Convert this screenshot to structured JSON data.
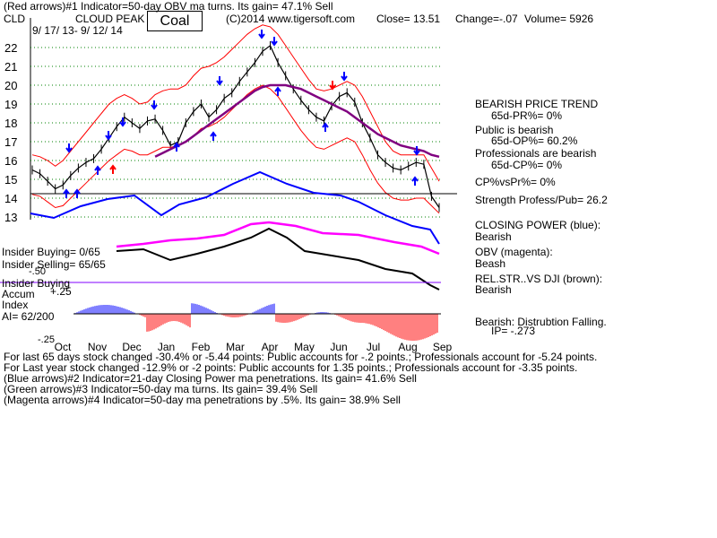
{
  "header": {
    "line1": "(Red arrows)#1 Indicator=50-day OBV ma turns. Its gain= 47.1% Sell",
    "ticker": "CLD",
    "company": "CLOUD PEAK",
    "industry": "Coal",
    "copyright": "(C)2014 www.tigersoft.com",
    "close": "Close=  13.51",
    "change": "Change=-.07",
    "volume": "Volume= 5926",
    "dates": "9/ 17/ 13-  9/ 12/ 14"
  },
  "right_panel": {
    "trend_title": "BEARISH PRICE TREND",
    "pr": "65d-PR%= 0%",
    "public": "Public is bearish",
    "op": "65d-OP%= 60.2%",
    "prof": "Professionals are bearish",
    "cp": "65d-CP%= 0%",
    "cpvspr": "CP%vsPr%=  0%",
    "strength": "Strength Profess/Pub= 26.2",
    "closing_power": "CLOSING POWER (blue):",
    "closing_power_v": "Bearish",
    "obv": "OBV (magenta):",
    "obv_v": "Beash",
    "relstr": "REL.STR..VS DJI (brown):",
    "relstr_v": "Bearish",
    "distribution": "Bearish: Distrubtion Falling.",
    "ip": "IP= -.273"
  },
  "left_labels": {
    "insider1": "Insider Buying= 0/65",
    "insider2": "Insider Selling= 65/65",
    "insider3": "Insider Buying",
    "accum": "Accum",
    "accum_val": "+.25",
    "index": "Index",
    "ai": "AI= 62/200",
    "minus50": "-.50",
    "minus25": "-.25"
  },
  "footer": {
    "l1": "For last 65 days stock changed -30.4% or -5.44 points:  Public accounts for -.2 points.;  Professionals account for -5.24 points.",
    "l2": "For Last year stock changed -12.9% or -2 points:  Public accounts for  1.35 points.;  Professionals account for -3.35 points.",
    "l3": "(Blue arrows)#2 Indicator=21-day Closing Power ma penetrations. Its gain= 41.6% Sell",
    "l4": "(Green arrows)#3 Indicator=50-day ma turns. Its gain= 39.4% Sell",
    "l5": "(Magenta arrows)#4 Indicator=50-day ma penetrations by .5%. Its gain= 38.9% Sell"
  },
  "colors": {
    "price": "#000000",
    "band": "#ff0000",
    "ma50": "#800080",
    "closing_power": "#0000ff",
    "obv": "#ff00ff",
    "relstr": "#000000",
    "accum_pos": "#0000ff",
    "accum_neg": "#ff0000",
    "grid": "#008000",
    "arrow_blue": "#0000ff",
    "arrow_red": "#ff0000"
  },
  "chart_data": {
    "type": "line",
    "y_ticks": [
      22,
      21,
      20,
      19,
      18,
      17,
      16,
      15,
      14,
      13
    ],
    "ylim": [
      13,
      22.5
    ],
    "x_ticks": [
      "Oct",
      "Nov",
      "Dec",
      "Jan",
      "Feb",
      "Mar",
      "Apr",
      "May",
      "Jun",
      "Jul",
      "Aug",
      "Sep"
    ],
    "grid": true,
    "series": [
      {
        "values": [
          15.5,
          15.3,
          14.9,
          14.5,
          14.7,
          15.2,
          15.6,
          15.9,
          16.1,
          16.6,
          17.2,
          17.8,
          18.3,
          18.0,
          17.7,
          18.1,
          18.2,
          17.6,
          16.8,
          17.0,
          18.0,
          18.6,
          19.0,
          18.3,
          18.7,
          19.3,
          19.6,
          20.2,
          20.7,
          21.2,
          21.8,
          22.1,
          21.2,
          20.5,
          19.8,
          19.2,
          18.7,
          18.3,
          18.1,
          18.9,
          19.4,
          19.6,
          19.1,
          18.0,
          17.2,
          16.3,
          15.9,
          15.6,
          15.5,
          15.7,
          15.9,
          15.8,
          14.1,
          13.5
        ]
      },
      {
        "values": [
          16.3,
          16.2,
          16.0,
          15.7,
          16.0,
          16.5,
          17.0,
          17.5,
          18.0,
          18.5,
          19.0,
          19.3,
          19.5,
          19.3,
          19.0,
          19.1,
          19.5,
          19.7,
          19.8,
          19.8,
          20.0,
          20.5,
          20.9,
          21.0,
          21.2,
          21.5,
          21.9,
          22.3,
          22.7,
          23.0,
          23.2,
          23.1,
          22.7,
          22.1,
          21.5,
          20.9,
          20.3,
          19.8,
          19.7,
          19.8,
          20.0,
          20.2,
          20.0,
          19.4,
          18.6,
          17.8,
          17.0,
          16.5,
          16.3,
          16.3,
          16.3,
          16.3,
          15.6,
          14.9
        ]
      },
      {
        "values": [
          14.2,
          14.1,
          13.8,
          13.5,
          13.6,
          14.0,
          14.4,
          14.8,
          15.2,
          15.6,
          16.0,
          16.3,
          16.6,
          16.5,
          16.3,
          16.3,
          16.5,
          16.7,
          16.7,
          16.8,
          17.0,
          17.3,
          17.7,
          17.8,
          18.0,
          18.3,
          18.7,
          19.1,
          19.5,
          19.8,
          20.0,
          19.8,
          19.4,
          18.8,
          18.2,
          17.6,
          17.1,
          16.7,
          16.6,
          16.8,
          17.0,
          17.2,
          17.0,
          16.3,
          15.5,
          14.8,
          14.3,
          14.0,
          13.9,
          13.9,
          14.0,
          14.0,
          13.6,
          13.2
        ]
      },
      {
        "values": [
          null,
          null,
          null,
          null,
          null,
          null,
          null,
          null,
          null,
          null,
          null,
          null,
          null,
          null,
          null,
          null,
          16.2,
          16.4,
          16.6,
          16.8,
          17.0,
          17.3,
          17.6,
          17.9,
          18.2,
          18.5,
          18.8,
          19.1,
          19.4,
          19.7,
          19.9,
          20.0,
          20.0,
          20.0,
          19.9,
          19.8,
          19.6,
          19.4,
          19.2,
          19.0,
          18.8,
          18.6,
          18.3,
          18.0,
          17.7,
          17.4,
          17.2,
          17.0,
          16.8,
          16.7,
          16.6,
          16.5,
          16.3,
          16.2
        ]
      }
    ]
  }
}
